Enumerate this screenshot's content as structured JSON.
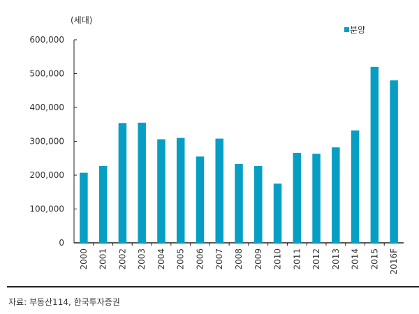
{
  "chart_data": {
    "type": "bar",
    "unit_label": "(세대)",
    "categories": [
      "2000",
      "2001",
      "2002",
      "2003",
      "2004",
      "2005",
      "2006",
      "2007",
      "2008",
      "2009",
      "2010",
      "2011",
      "2012",
      "2013",
      "2014",
      "2015",
      "2016F"
    ],
    "series": [
      {
        "name": "분양",
        "color": "#079ec4",
        "values": [
          207000,
          227000,
          354000,
          355000,
          306000,
          310000,
          255000,
          308000,
          233000,
          227000,
          175000,
          266000,
          263000,
          282000,
          332000,
          520000,
          480000
        ]
      }
    ],
    "ylim": [
      0,
      600000
    ],
    "yticks": [
      0,
      100000,
      200000,
      300000,
      400000,
      500000,
      600000
    ],
    "ytick_labels": [
      "0",
      "100,000",
      "200,000",
      "300,000",
      "400,000",
      "500,000",
      "600,000"
    ],
    "legend_placement": "top-right",
    "grid": false
  },
  "source": "자료:  부동산114,  한국투자증권"
}
